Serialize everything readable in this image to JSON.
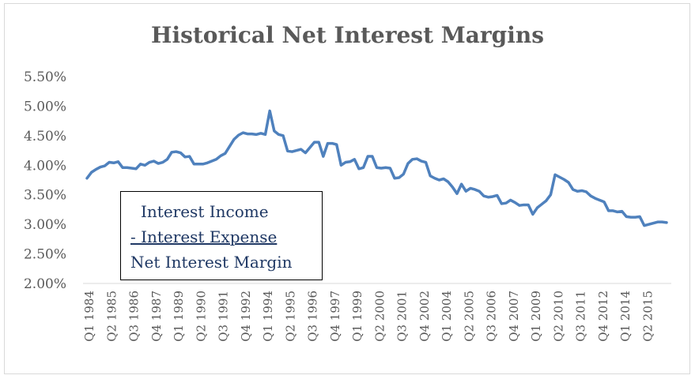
{
  "chart_data": {
    "type": "line",
    "title": "Historical Net Interest Margins",
    "xlabel": "",
    "ylabel": "",
    "ylim": [
      0.02,
      0.055
    ],
    "y_ticks": [
      0.02,
      0.025,
      0.03,
      0.035,
      0.04,
      0.045,
      0.05,
      0.055
    ],
    "y_tick_labels": [
      "2.00%",
      "2.50%",
      "3.00%",
      "3.50%",
      "4.00%",
      "4.50%",
      "5.00%",
      "5.50%"
    ],
    "x_tick_labels": [
      "Q1 1984",
      "Q2 1985",
      "Q3 1986",
      "Q4 1987",
      "Q1 1989",
      "Q2 1990",
      "Q3 1991",
      "Q4 1992",
      "Q1 1994",
      "Q2 1995",
      "Q3 1996",
      "Q4 1997",
      "Q1 1999",
      "Q2 2000",
      "Q3 2001",
      "Q4 2002",
      "Q1 2004",
      "Q2 2005",
      "Q3 2006",
      "Q4 2007",
      "Q1 2009",
      "Q2 2010",
      "Q3 2011",
      "Q4 2012",
      "Q1 2014",
      "Q2 2015"
    ],
    "grid": false,
    "legend": "none",
    "series": [
      {
        "color": "#4f81bd",
        "values": [
          0.0378,
          0.0388,
          0.0393,
          0.0397,
          0.0399,
          0.0405,
          0.0404,
          0.0406,
          0.0396,
          0.0396,
          0.0395,
          0.0394,
          0.0402,
          0.04,
          0.0405,
          0.0407,
          0.0403,
          0.0405,
          0.041,
          0.0422,
          0.0423,
          0.0421,
          0.0414,
          0.0415,
          0.0402,
          0.0402,
          0.0402,
          0.0404,
          0.0407,
          0.041,
          0.0416,
          0.042,
          0.0432,
          0.0444,
          0.0451,
          0.0455,
          0.0453,
          0.0453,
          0.0452,
          0.0454,
          0.0452,
          0.0492,
          0.0458,
          0.0452,
          0.045,
          0.0424,
          0.0423,
          0.0425,
          0.0427,
          0.0421,
          0.043,
          0.0439,
          0.0439,
          0.0415,
          0.0437,
          0.0437,
          0.0435,
          0.04,
          0.0405,
          0.0406,
          0.041,
          0.0394,
          0.0396,
          0.0415,
          0.0415,
          0.0396,
          0.0395,
          0.0396,
          0.0395,
          0.0378,
          0.0379,
          0.0385,
          0.0403,
          0.041,
          0.0411,
          0.0407,
          0.0405,
          0.0382,
          0.0378,
          0.0375,
          0.0377,
          0.0372,
          0.0363,
          0.0352,
          0.0368,
          0.0356,
          0.0361,
          0.0359,
          0.0356,
          0.0348,
          0.0346,
          0.0347,
          0.0349,
          0.0335,
          0.0336,
          0.0341,
          0.0337,
          0.0332,
          0.0333,
          0.0333,
          0.0317,
          0.0328,
          0.0334,
          0.034,
          0.035,
          0.0384,
          0.038,
          0.0376,
          0.0371,
          0.0359,
          0.0356,
          0.0357,
          0.0355,
          0.0348,
          0.0344,
          0.0341,
          0.0338,
          0.0323,
          0.0323,
          0.0321,
          0.0322,
          0.0313,
          0.0312,
          0.0312,
          0.0313,
          0.0298,
          0.03,
          0.0302,
          0.0304,
          0.0304,
          0.0303
        ]
      }
    ]
  },
  "textbox": {
    "line1": "Interest Income",
    "line2": "- Interest Expense",
    "line3": "Net Interest Margin"
  }
}
